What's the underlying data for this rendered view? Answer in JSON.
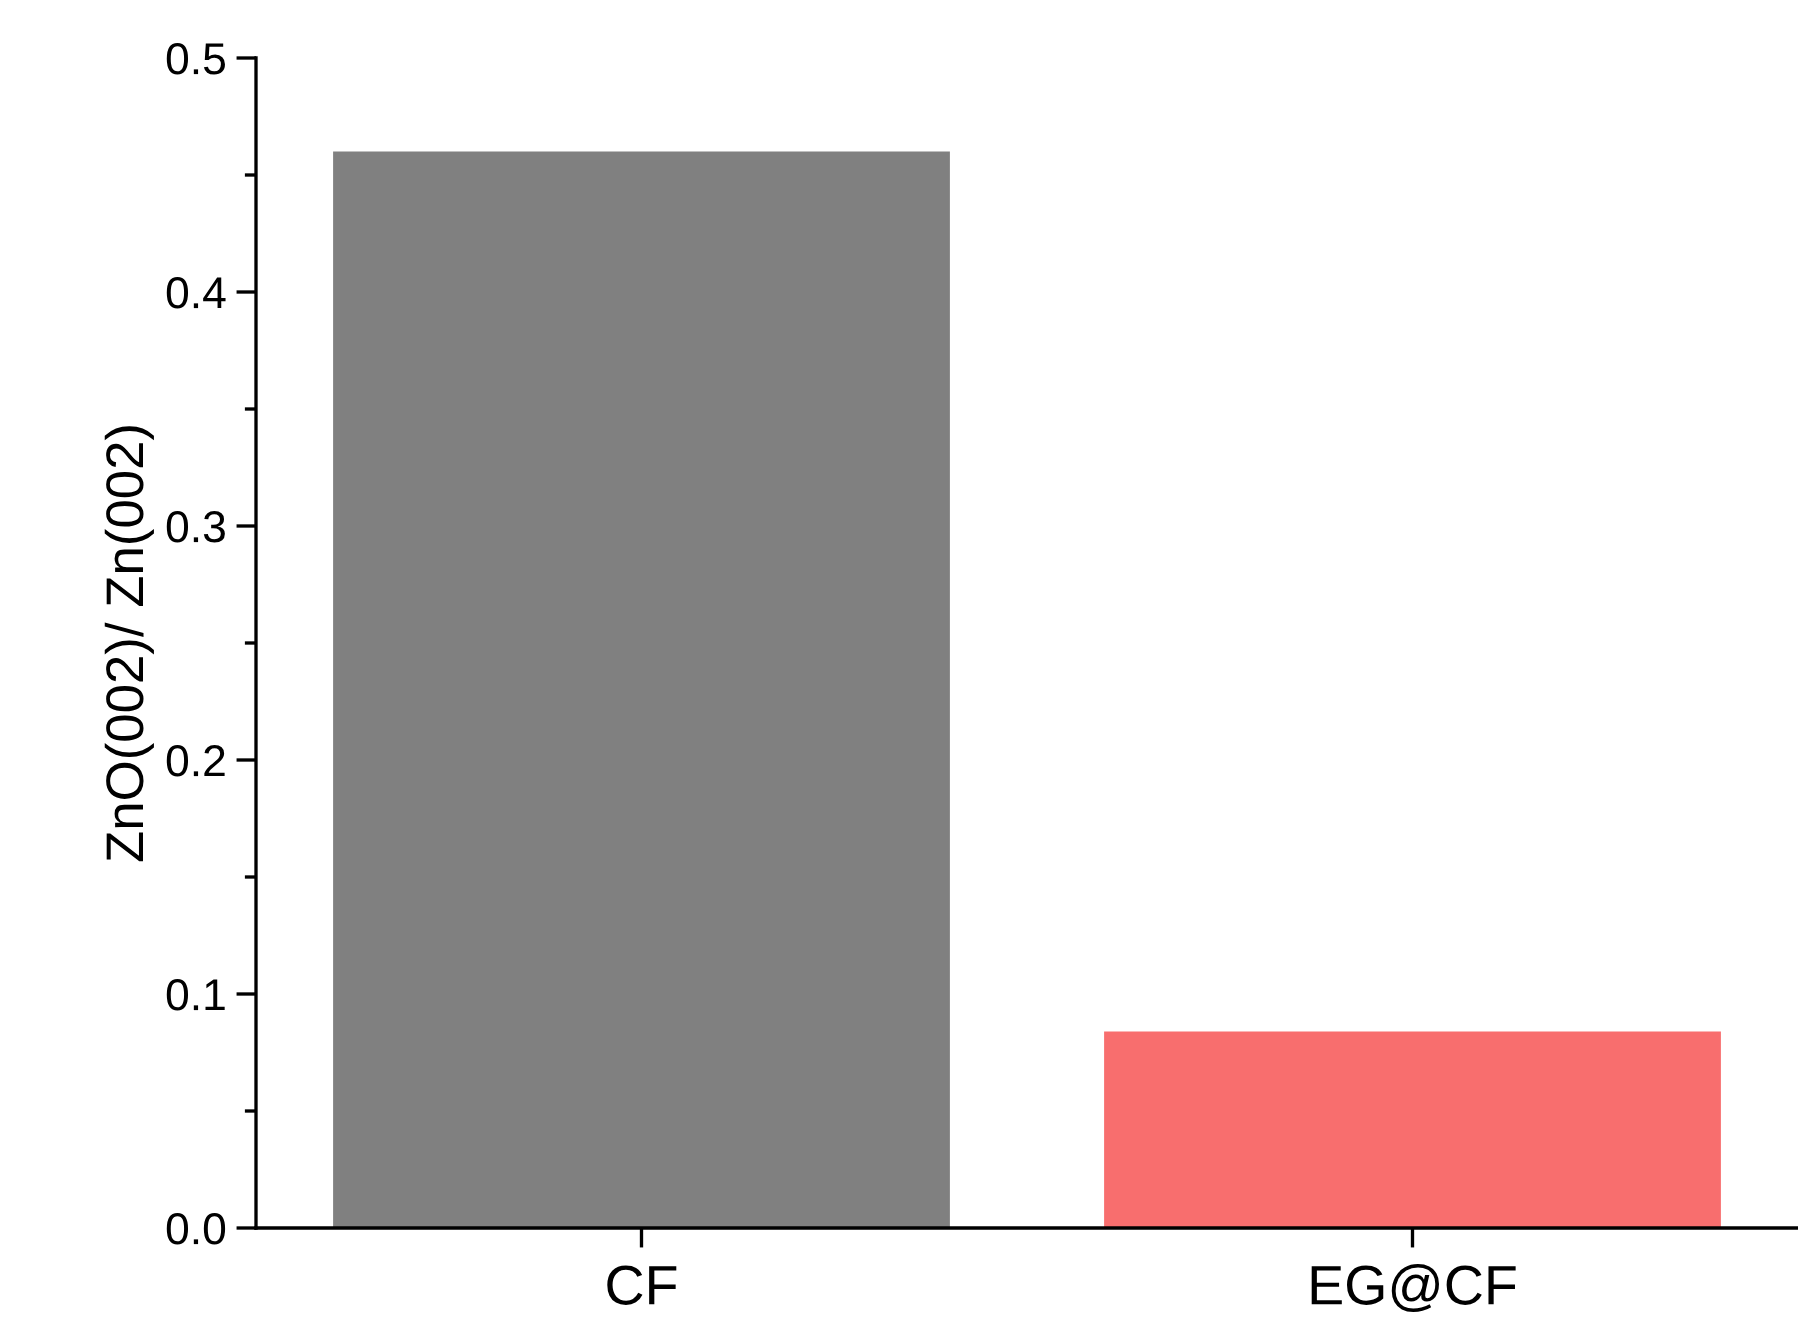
{
  "chart_data": {
    "type": "bar",
    "ylabel": "ZnO(002)/ Zn(002)",
    "categories": [
      "CF",
      "EG@CF"
    ],
    "values": [
      0.46,
      0.084
    ],
    "colors": [
      "#808080",
      "#f86e6e"
    ],
    "ylim": [
      0,
      0.5
    ],
    "yticks": [
      {
        "value": 0,
        "label": "0.0"
      },
      {
        "value": 0.05,
        "label": null
      },
      0.1,
      {
        "value": 0.15,
        "label": null
      },
      0.2,
      {
        "value": 0.25,
        "label": null
      },
      0.3,
      {
        "value": 0.35,
        "label": null
      },
      0.4,
      {
        "value": 0.45,
        "label": null
      },
      0.5
    ],
    "grid": false,
    "legend": false
  }
}
